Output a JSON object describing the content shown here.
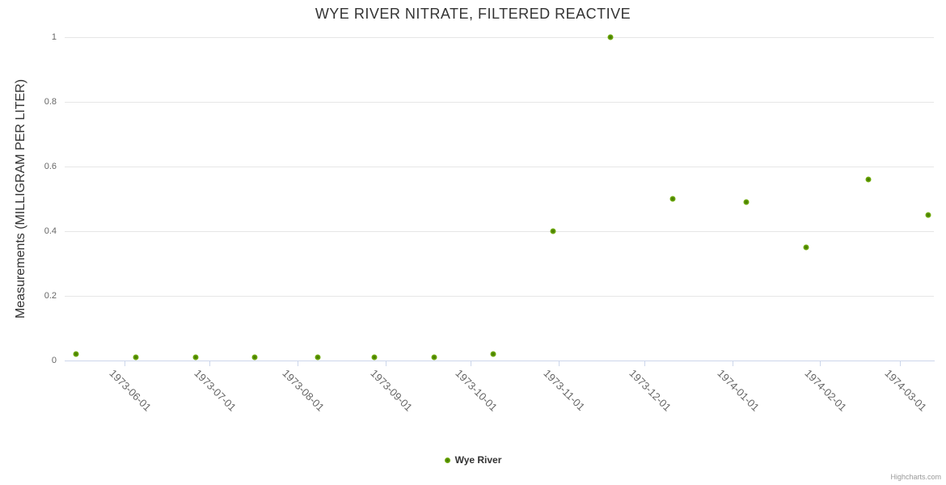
{
  "title": "WYE RIVER NITRATE, FILTERED REACTIVE",
  "y_axis": {
    "title": "Measurements (MILLIGRAM PER LITER)",
    "tick_labels": [
      "0",
      "0.2",
      "0.4",
      "0.6",
      "0.8",
      "1"
    ]
  },
  "x_axis": {
    "tick_labels": [
      "1973-06-01",
      "1973-07-01",
      "1973-08-01",
      "1973-09-01",
      "1973-10-01",
      "1973-11-01",
      "1973-12-01",
      "1974-01-01",
      "1974-02-01",
      "1974-03-01"
    ]
  },
  "legend": {
    "items": [
      {
        "label": "Wye River",
        "marker": "green-dot"
      }
    ]
  },
  "credit": "Highcharts.com",
  "colors": {
    "marker_green": "#76b30f",
    "marker_core": "#3c7000",
    "title_text": "#333333",
    "axis_label_text": "#666666",
    "grid_line": "#e6e6e6",
    "axis_line": "#ccd6eb",
    "credit_text": "#999999"
  },
  "chart_data": {
    "type": "scatter",
    "title": "WYE RIVER NITRATE, FILTERED REACTIVE",
    "xlabel": "",
    "ylabel": "Measurements (MILLIGRAM PER LITER)",
    "ylim": [
      0,
      1
    ],
    "y_ticks": [
      0,
      0.2,
      0.4,
      0.6,
      0.8,
      1
    ],
    "x_range": [
      "1973-05-11",
      "1974-03-13"
    ],
    "x_tick_dates": [
      "1973-06-01",
      "1973-07-01",
      "1973-08-01",
      "1973-09-01",
      "1973-10-01",
      "1973-11-01",
      "1973-12-01",
      "1974-01-01",
      "1974-02-01",
      "1974-03-01"
    ],
    "grid": "horizontal-only",
    "legend_position": "bottom-center",
    "series": [
      {
        "name": "Wye River",
        "points": [
          {
            "date": "1973-05-15",
            "value": 0.02
          },
          {
            "date": "1973-06-05",
            "value": 0.01
          },
          {
            "date": "1973-06-26",
            "value": 0.01
          },
          {
            "date": "1973-07-17",
            "value": 0.01
          },
          {
            "date": "1973-08-08",
            "value": 0.01
          },
          {
            "date": "1973-08-28",
            "value": 0.01
          },
          {
            "date": "1973-09-18",
            "value": 0.01
          },
          {
            "date": "1973-10-09",
            "value": 0.02
          },
          {
            "date": "1973-10-30",
            "value": 0.4
          },
          {
            "date": "1973-11-19",
            "value": 1
          },
          {
            "date": "1973-12-11",
            "value": 0.5
          },
          {
            "date": "1974-01-06",
            "value": 0.49
          },
          {
            "date": "1974-01-27",
            "value": 0.35
          },
          {
            "date": "1974-02-18",
            "value": 0.56
          },
          {
            "date": "1974-03-11",
            "value": 0.45
          }
        ]
      }
    ]
  }
}
